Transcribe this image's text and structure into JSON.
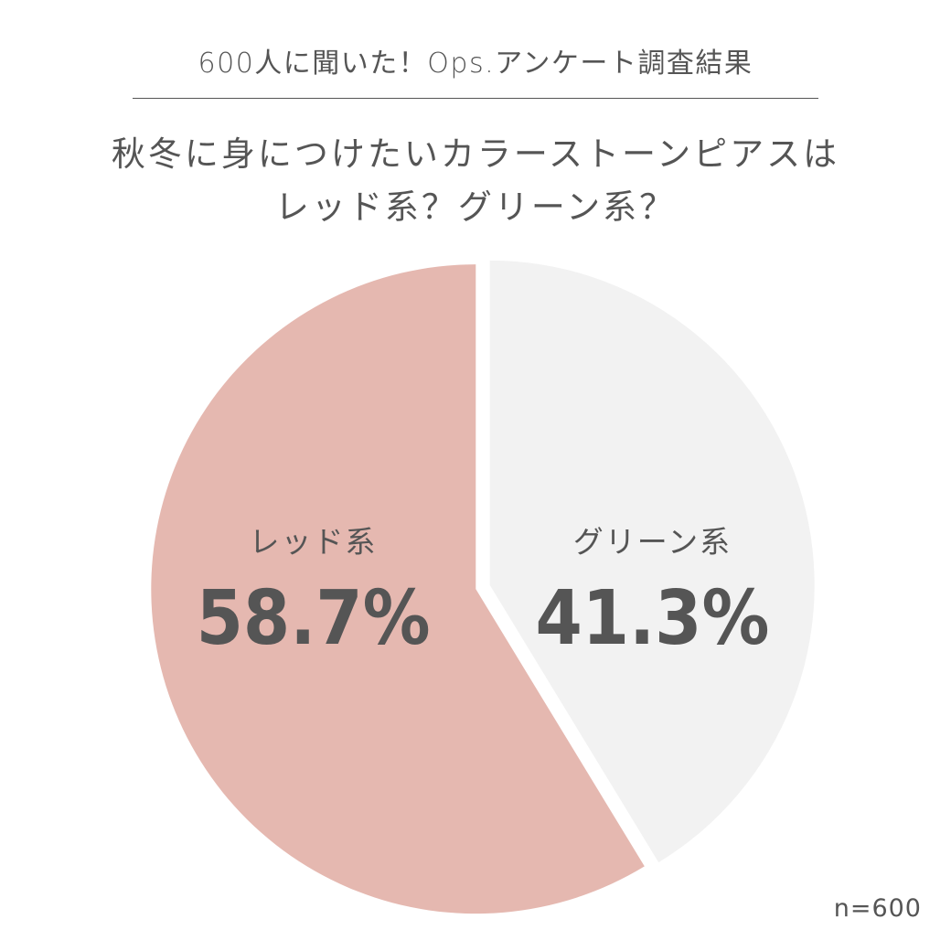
{
  "header": {
    "kicker": "600人に聞いた！Ops.アンケート調査結果",
    "title_line1": "秋冬に身につけたいカラーストーンピアスは",
    "title_line2": "レッド系？グリーン系？"
  },
  "chart_data": {
    "type": "pie",
    "categories": [
      "グリーン系",
      "レッド系"
    ],
    "values": [
      41.3,
      58.7
    ],
    "value_labels": [
      "41.3%",
      "58.7%"
    ],
    "colors": [
      "#f2f2f2",
      "#e5b8b0"
    ],
    "start": "12 o'clock",
    "direction": "clockwise"
  },
  "footer": {
    "sample_size": "n=600"
  }
}
